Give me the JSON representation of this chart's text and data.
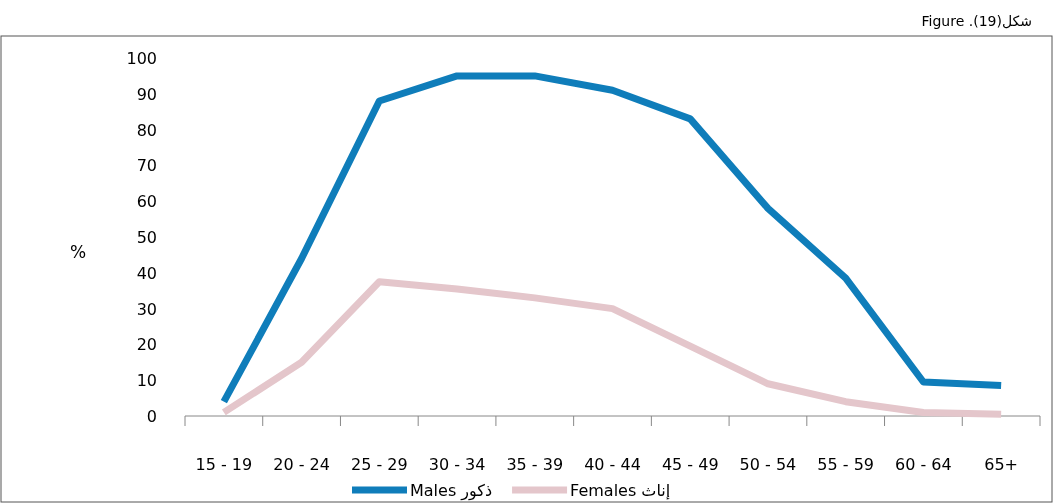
{
  "chart_data": {
    "type": "line",
    "title": "Figure .(19)شكل",
    "ylabel": "%",
    "categories": [
      "15 - 19",
      "20 - 24",
      "25 - 29",
      "30 - 34",
      "35 - 39",
      "40 - 44",
      "45 - 49",
      "50 - 54",
      "55 - 59",
      "60 - 64",
      "65+"
    ],
    "series": [
      {
        "name": "Males ذكور",
        "color": "#0f7dba",
        "values": [
          4,
          44,
          88,
          95,
          95,
          91,
          83,
          58,
          38.5,
          9.5,
          8.5
        ]
      },
      {
        "name": "Females إناث",
        "color": "#e4c6cb",
        "values": [
          1,
          15,
          37.5,
          35.5,
          33,
          30,
          19.5,
          9,
          4,
          1,
          0.5
        ]
      }
    ],
    "ylim": [
      0,
      100
    ],
    "yticks": [
      0,
      10,
      20,
      30,
      40,
      50,
      60,
      70,
      80,
      90,
      100
    ],
    "legend": "bottom",
    "line_style": "solid"
  }
}
